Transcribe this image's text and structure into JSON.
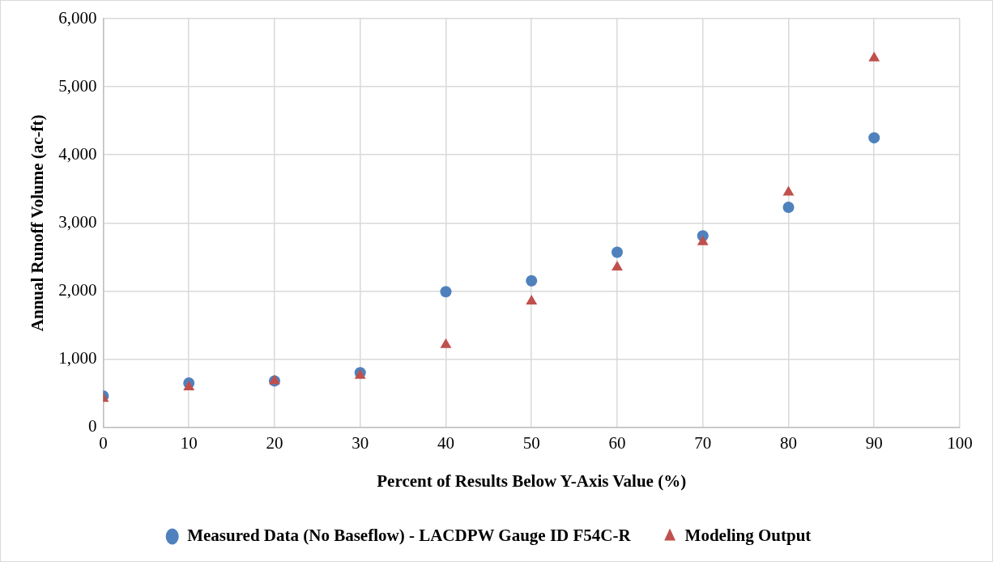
{
  "chart_data": {
    "type": "scatter",
    "xlabel": "Percent of Results Below Y-Axis Value (%)",
    "ylabel": "Annual Runoff Volume (ac-ft)",
    "x": [
      0,
      10,
      20,
      30,
      40,
      50,
      60,
      70,
      80,
      90
    ],
    "series": [
      {
        "name": "Measured Data (No Baseflow) - LACDPW Gauge ID F54C-R",
        "color": "#4f81bd",
        "marker": "circle",
        "values": [
          460,
          650,
          680,
          800,
          1990,
          2150,
          2570,
          2810,
          3230,
          4250
        ]
      },
      {
        "name": "Modeling Output",
        "color": "#c0504d",
        "marker": "triangle",
        "values": [
          420,
          590,
          680,
          760,
          1210,
          1850,
          2350,
          2720,
          3450,
          5420
        ]
      }
    ],
    "xlim": [
      0,
      100
    ],
    "xticks": [
      0,
      10,
      20,
      30,
      40,
      50,
      60,
      70,
      80,
      90,
      100
    ],
    "ylim": [
      0,
      6000
    ],
    "yticks": [
      {
        "value": 0,
        "label": "0"
      },
      {
        "value": 1000,
        "label": "1,000"
      },
      {
        "value": 2000,
        "label": "2,000"
      },
      {
        "value": 3000,
        "label": "3,000"
      },
      {
        "value": 4000,
        "label": "4,000"
      },
      {
        "value": 5000,
        "label": "5,000"
      },
      {
        "value": 6000,
        "label": "6,000"
      }
    ],
    "grid": true,
    "legend": "bottom"
  }
}
